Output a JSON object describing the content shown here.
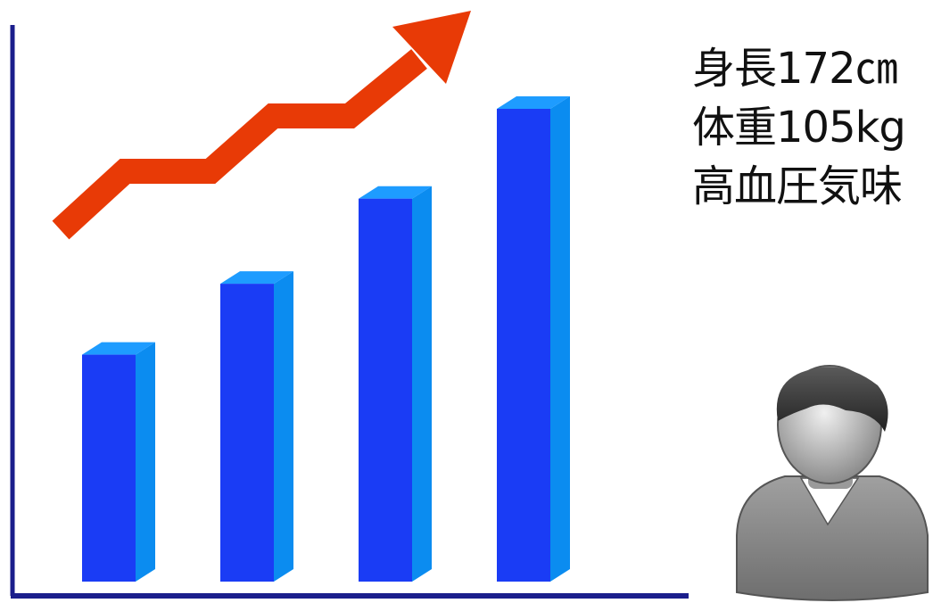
{
  "chart_data": {
    "type": "bar",
    "categories": [
      "",
      "",
      "",
      ""
    ],
    "values": [
      48,
      63,
      81,
      100
    ],
    "trend": "up",
    "colors": {
      "bar_front": "#1a3cf5",
      "bar_side": "#0b8cf0",
      "bar_top": "#1e9cff",
      "axis": "#1b1e8c",
      "arrow": "#e83a06"
    }
  },
  "profile": {
    "height": "身長172㎝",
    "weight": "体重105kg",
    "condition": "高血圧気味"
  },
  "icons": {
    "person": "person-icon",
    "arrow": "trend-up-arrow-icon"
  }
}
